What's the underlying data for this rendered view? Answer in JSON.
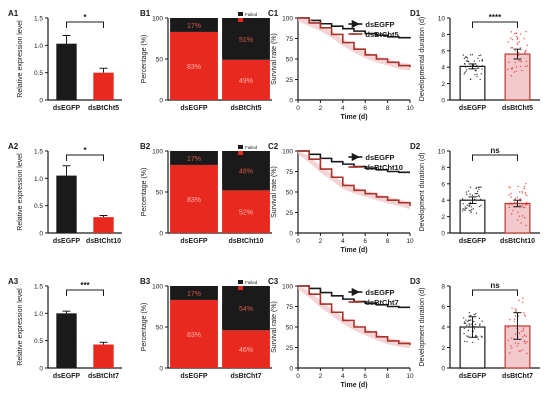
{
  "colors": {
    "black": "#1a1a1a",
    "red": "#e8291f",
    "dark_red": "#a8322a",
    "shade_red": "#f2c9cc",
    "bar_outline_red": "#c0392b"
  },
  "chart_data": [
    {
      "panel": "A1",
      "type": "bar",
      "ylabel": "Relative expression level",
      "ylim": [
        0,
        1.5
      ],
      "yticks": [
        0,
        0.5,
        1.0,
        1.5
      ],
      "categories": [
        "dsEGFP",
        "dsBtCht5"
      ],
      "values": [
        1.03,
        0.5
      ],
      "errors": [
        0.15,
        0.08
      ],
      "significance": "*"
    },
    {
      "panel": "A2",
      "type": "bar",
      "ylabel": "Relative expression level",
      "ylim": [
        0,
        1.5
      ],
      "yticks": [
        0,
        0.5,
        1.0,
        1.5
      ],
      "categories": [
        "dsEGFP",
        "dsBtCht10"
      ],
      "values": [
        1.05,
        0.29
      ],
      "errors": [
        0.18,
        0.03
      ],
      "significance": "*"
    },
    {
      "panel": "A3",
      "type": "bar",
      "ylabel": "Relative expression level",
      "ylim": [
        0,
        1.5
      ],
      "yticks": [
        0,
        0.5,
        1.0,
        1.5
      ],
      "categories": [
        "dsEGFP",
        "dsBtCht7"
      ],
      "values": [
        1.0,
        0.43
      ],
      "errors": [
        0.04,
        0.04
      ],
      "significance": "***"
    },
    {
      "panel": "B1",
      "type": "bar",
      "stacked": true,
      "ylabel": "Percentage (%)",
      "ylim": [
        0,
        100
      ],
      "yticks": [
        0,
        50,
        100
      ],
      "categories": [
        "dsEGFP",
        "dsBtCht5"
      ],
      "series": [
        {
          "name": "Succeeded",
          "values": [
            83,
            49
          ],
          "labels": [
            "83%",
            "49%"
          ]
        },
        {
          "name": "Failed",
          "values": [
            17,
            51
          ],
          "labels": [
            "17%",
            "51%"
          ]
        }
      ]
    },
    {
      "panel": "B2",
      "type": "bar",
      "stacked": true,
      "ylabel": "Percentage (%)",
      "ylim": [
        0,
        100
      ],
      "yticks": [
        0,
        50,
        100
      ],
      "categories": [
        "dsEGFP",
        "dsBtCht10"
      ],
      "series": [
        {
          "name": "Succeeded",
          "values": [
            83,
            52
          ],
          "labels": [
            "83%",
            "52%"
          ]
        },
        {
          "name": "Failed",
          "values": [
            17,
            48
          ],
          "labels": [
            "17%",
            "48%"
          ]
        }
      ]
    },
    {
      "panel": "B3",
      "type": "bar",
      "stacked": true,
      "ylabel": "Percentage (%)",
      "ylim": [
        0,
        100
      ],
      "yticks": [
        0,
        50,
        100
      ],
      "categories": [
        "dsEGFP",
        "dsBtCht7"
      ],
      "series": [
        {
          "name": "Succeeded",
          "values": [
            83,
            46
          ],
          "labels": [
            "83%",
            "46%"
          ]
        },
        {
          "name": "Failed",
          "values": [
            17,
            54
          ],
          "labels": [
            "17%",
            "54%"
          ]
        }
      ]
    },
    {
      "panel": "C1",
      "type": "line",
      "xlabel": "Time (d)",
      "ylabel": "Survival rate (%)",
      "xlim": [
        0,
        10
      ],
      "ylim": [
        0,
        100
      ],
      "xticks": [
        0,
        2,
        4,
        6,
        8,
        10
      ],
      "yticks": [
        0,
        25,
        50,
        75,
        100
      ],
      "series": [
        {
          "name": "dsEGFP",
          "x": [
            0,
            1,
            2,
            3,
            4,
            5,
            6,
            7,
            8,
            9,
            10
          ],
          "y": [
            100,
            97,
            93,
            90,
            87,
            84,
            81,
            79,
            77,
            76,
            75
          ]
        },
        {
          "name": "dsBtCht5",
          "x": [
            0,
            1,
            2,
            3,
            4,
            5,
            6,
            7,
            8,
            9,
            10
          ],
          "y": [
            100,
            94,
            88,
            80,
            70,
            62,
            55,
            50,
            46,
            42,
            40
          ]
        }
      ]
    },
    {
      "panel": "C2",
      "type": "line",
      "xlabel": "Time (d)",
      "ylabel": "Survival rate (%)",
      "xlim": [
        0,
        10
      ],
      "ylim": [
        0,
        100
      ],
      "xticks": [
        0,
        2,
        4,
        6,
        8,
        10
      ],
      "yticks": [
        0,
        25,
        50,
        75,
        100
      ],
      "series": [
        {
          "name": "dsEGFP",
          "x": [
            0,
            1,
            2,
            3,
            4,
            5,
            6,
            7,
            8,
            9,
            10
          ],
          "y": [
            100,
            96,
            91,
            87,
            84,
            81,
            79,
            77,
            75,
            74,
            74
          ]
        },
        {
          "name": "dsBtCht10",
          "x": [
            0,
            1,
            2,
            3,
            4,
            5,
            6,
            7,
            8,
            9,
            10
          ],
          "y": [
            100,
            90,
            78,
            68,
            58,
            52,
            48,
            44,
            40,
            37,
            33
          ]
        }
      ]
    },
    {
      "panel": "C3",
      "type": "line",
      "xlabel": "Time (d)",
      "ylabel": "Survival rate (%)",
      "xlim": [
        0,
        10
      ],
      "ylim": [
        0,
        100
      ],
      "xticks": [
        0,
        2,
        4,
        6,
        8,
        10
      ],
      "yticks": [
        0,
        25,
        50,
        75,
        100
      ],
      "series": [
        {
          "name": "dsEGFP",
          "x": [
            0,
            1,
            2,
            3,
            4,
            5,
            6,
            7,
            8,
            9,
            10
          ],
          "y": [
            100,
            97,
            92,
            88,
            84,
            81,
            79,
            77,
            75,
            74,
            74
          ]
        },
        {
          "name": "dsBtCht7",
          "x": [
            0,
            1,
            2,
            3,
            4,
            5,
            6,
            7,
            8,
            9,
            10
          ],
          "y": [
            100,
            90,
            78,
            68,
            58,
            50,
            44,
            38,
            33,
            30,
            28
          ]
        }
      ]
    },
    {
      "panel": "D1",
      "type": "bar",
      "ylabel": "Developmental duration (d)",
      "ylim": [
        0,
        10
      ],
      "yticks": [
        0,
        2,
        4,
        6,
        8,
        10
      ],
      "categories": [
        "dsEGFP",
        "dsBtCht5"
      ],
      "values": [
        4.1,
        5.6
      ],
      "errors": [
        0.3,
        0.6
      ],
      "significance": "****"
    },
    {
      "panel": "D2",
      "type": "bar",
      "ylabel": "Development duration (d)",
      "ylim": [
        0,
        10
      ],
      "yticks": [
        0,
        2,
        4,
        6,
        8,
        10
      ],
      "categories": [
        "dsEGFP",
        "dsBtCht10"
      ],
      "values": [
        4.0,
        3.6
      ],
      "errors": [
        0.4,
        0.4
      ],
      "significance": "ns"
    },
    {
      "panel": "D3",
      "type": "bar",
      "ylabel": "Development duration (d)",
      "ylim": [
        0,
        8
      ],
      "yticks": [
        0,
        2,
        4,
        6,
        8
      ],
      "categories": [
        "dsEGFP",
        "dsBtCht7"
      ],
      "values": [
        4.0,
        4.1
      ],
      "errors": [
        1.0,
        1.3
      ],
      "significance": "ns"
    }
  ]
}
